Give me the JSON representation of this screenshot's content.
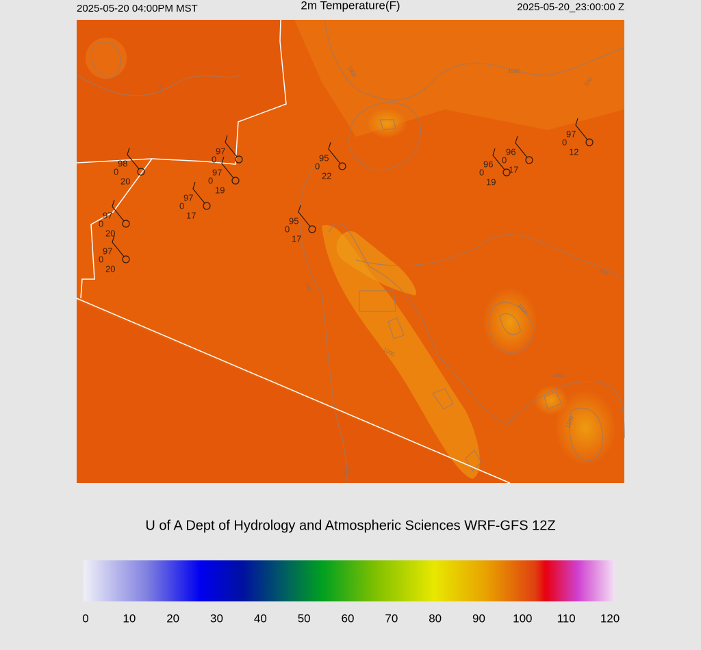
{
  "header": {
    "left": "2025-05-20 04:00PM MST",
    "title": "2m Temperature(F)",
    "right": "2025-05-20_23:00:00 Z"
  },
  "stations": [
    {
      "temp": 98,
      "dew": 0,
      "wind": 20
    },
    {
      "temp": 97,
      "dew": 0
    },
    {
      "temp": 97,
      "dew": 0,
      "wind": 19
    },
    {
      "temp": 97,
      "dew": 0,
      "wind": 17
    },
    {
      "temp": 97,
      "dew": 0,
      "wind": 20
    },
    {
      "temp": 97,
      "dew": 0,
      "wind": 20
    },
    {
      "temp": 95,
      "dew": 0,
      "wind": 22
    },
    {
      "temp": 95,
      "dew": 0,
      "wind": 17
    },
    {
      "temp": 96,
      "dew": 0,
      "wind": 19
    },
    {
      "temp": 96,
      "dew": 0,
      "wind": 17
    },
    {
      "temp": 97,
      "dew": 0,
      "wind": 12
    }
  ],
  "contour_labels": [
    "1000",
    "1000",
    "500",
    "500",
    "500",
    "500",
    "1000",
    "1000",
    "1000",
    "1500",
    "500"
  ],
  "footer": "U of A Dept of Hydrology and Atmospheric Sciences WRF-GFS 12Z",
  "colorbar": {
    "ticks": [
      0,
      10,
      20,
      30,
      40,
      50,
      60,
      70,
      80,
      90,
      100,
      110,
      120
    ],
    "lim": [
      0,
      120
    ]
  }
}
